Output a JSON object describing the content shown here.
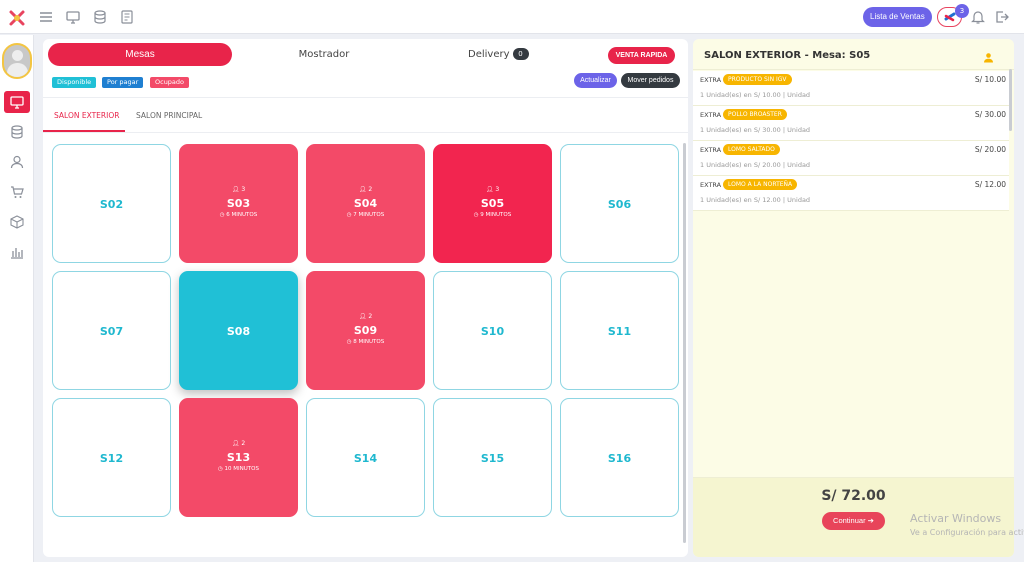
{
  "topbar": {
    "ventas_label": "Lista de Ventas",
    "notification_count": "3",
    "icons": [
      "app-logo-icon",
      "menu-icon",
      "monitor-icon",
      "database-icon",
      "document-icon",
      "bell-icon",
      "logout-icon"
    ]
  },
  "sidebar": {
    "items": [
      "monitor-icon",
      "database-icon",
      "user-icon",
      "cart-icon",
      "box-icon",
      "chart-icon"
    ]
  },
  "main": {
    "tabs": {
      "mesas": "Mesas",
      "mostrador": "Mostrador",
      "delivery": "Delivery",
      "delivery_count": "0"
    },
    "venta_rapida": "VENTA RAPIDA",
    "legend": {
      "disponible": "Disponible",
      "por_pagar": "Por pagar",
      "ocupado": "Ocupado"
    },
    "actualizar": "Actualizar",
    "mover_pedidos": "Mover pedidos",
    "salon_tabs": [
      "SALON EXTERIOR",
      "SALON PRINCIPAL"
    ],
    "mesas": [
      {
        "name": "S02",
        "status": "free"
      },
      {
        "name": "S03",
        "status": "busy",
        "people": "3",
        "mins": "6 MINUTOS"
      },
      {
        "name": "S04",
        "status": "busy",
        "people": "2",
        "mins": "7 MINUTOS"
      },
      {
        "name": "S05",
        "status": "busy",
        "people": "3",
        "mins": "9 MINUTOS"
      },
      {
        "name": "S06",
        "status": "free"
      },
      {
        "name": "S07",
        "status": "free"
      },
      {
        "name": "S08",
        "status": "selected"
      },
      {
        "name": "S09",
        "status": "busy",
        "people": "2",
        "mins": "8 MINUTOS"
      },
      {
        "name": "S10",
        "status": "free"
      },
      {
        "name": "S11",
        "status": "free"
      },
      {
        "name": "S12",
        "status": "free"
      },
      {
        "name": "S13",
        "status": "busy",
        "people": "2",
        "mins": "10 MINUTOS"
      },
      {
        "name": "S14",
        "status": "free"
      },
      {
        "name": "S15",
        "status": "free"
      },
      {
        "name": "S16",
        "status": "free"
      }
    ]
  },
  "order": {
    "title": "SALON EXTERIOR - Mesa: S05",
    "items": [
      {
        "extra": "EXTRA",
        "product": "PRODUCTO SIN IGV",
        "price": "S/ 10.00",
        "detail": "1 Unidad(es) en S/ 10.00 | Unidad"
      },
      {
        "extra": "EXTRA",
        "product": "POLLO BROASTER",
        "price": "S/ 30.00",
        "detail": "1 Unidad(es) en S/ 30.00 | Unidad"
      },
      {
        "extra": "EXTRA",
        "product": "LOMO SALTADO",
        "price": "S/ 20.00",
        "detail": "1 Unidad(es) en S/ 20.00 | Unidad"
      },
      {
        "extra": "EXTRA",
        "product": "LOMO A LA NORTEÑA",
        "price": "S/ 12.00",
        "detail": "1 Unidad(es) en S/ 12.00 | Unidad"
      }
    ],
    "total": "S/ 72.00",
    "continuar": "Continuar ➔"
  },
  "watermark": {
    "line1": "Activar Windows",
    "line2": "Ve a Configuración para activ"
  },
  "colors": {
    "accent_red": "#e8244a",
    "purple": "#6c63e8",
    "teal": "#1fb8cf",
    "busy": "#f34a68",
    "yellow": "#f7b500"
  }
}
